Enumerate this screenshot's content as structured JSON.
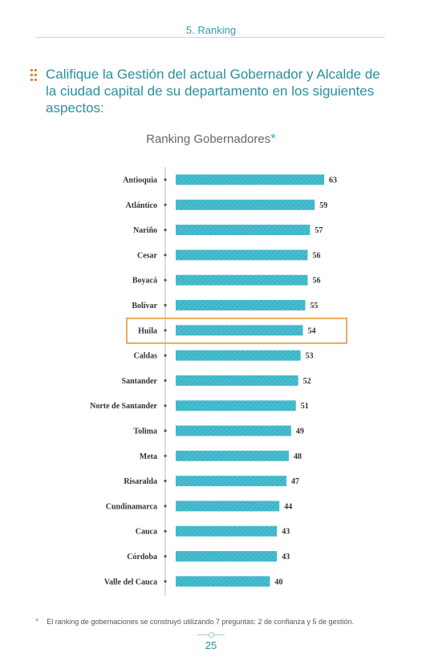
{
  "header": {
    "section": "5. Ranking"
  },
  "question": "Califique la Gestión del actual Gobernador y Alcalde de la ciudad capital de su departamento en los siguientes aspectos:",
  "chart_title": {
    "text": "Ranking Gobernadores",
    "star": "*"
  },
  "chart_data": {
    "type": "bar",
    "orientation": "horizontal",
    "title": "Ranking Gobernadores*",
    "categories": [
      "Antioquia",
      "Atlántico",
      "Nariño",
      "Cesar",
      "Boyacá",
      "Bolívar",
      "Huila",
      "Caldas",
      "Santander",
      "Norte de Santander",
      "Tolima",
      "Meta",
      "Risaralda",
      "Cundinamarca",
      "Cauca",
      "Córdoba",
      "Valle del Cauca"
    ],
    "values": [
      63,
      59,
      57,
      56,
      56,
      55,
      54,
      53,
      52,
      51,
      49,
      48,
      47,
      44,
      43,
      43,
      40
    ],
    "highlight": "Huila",
    "colors": {
      "bar": "#3bb5c8",
      "highlight_box": "#e8902e"
    }
  },
  "footnote": {
    "star": "*",
    "text": "El ranking de gobernaciones se construyó utilizando 7 preguntas: 2 de confianza y 5 de gestión."
  },
  "page_number": "25"
}
